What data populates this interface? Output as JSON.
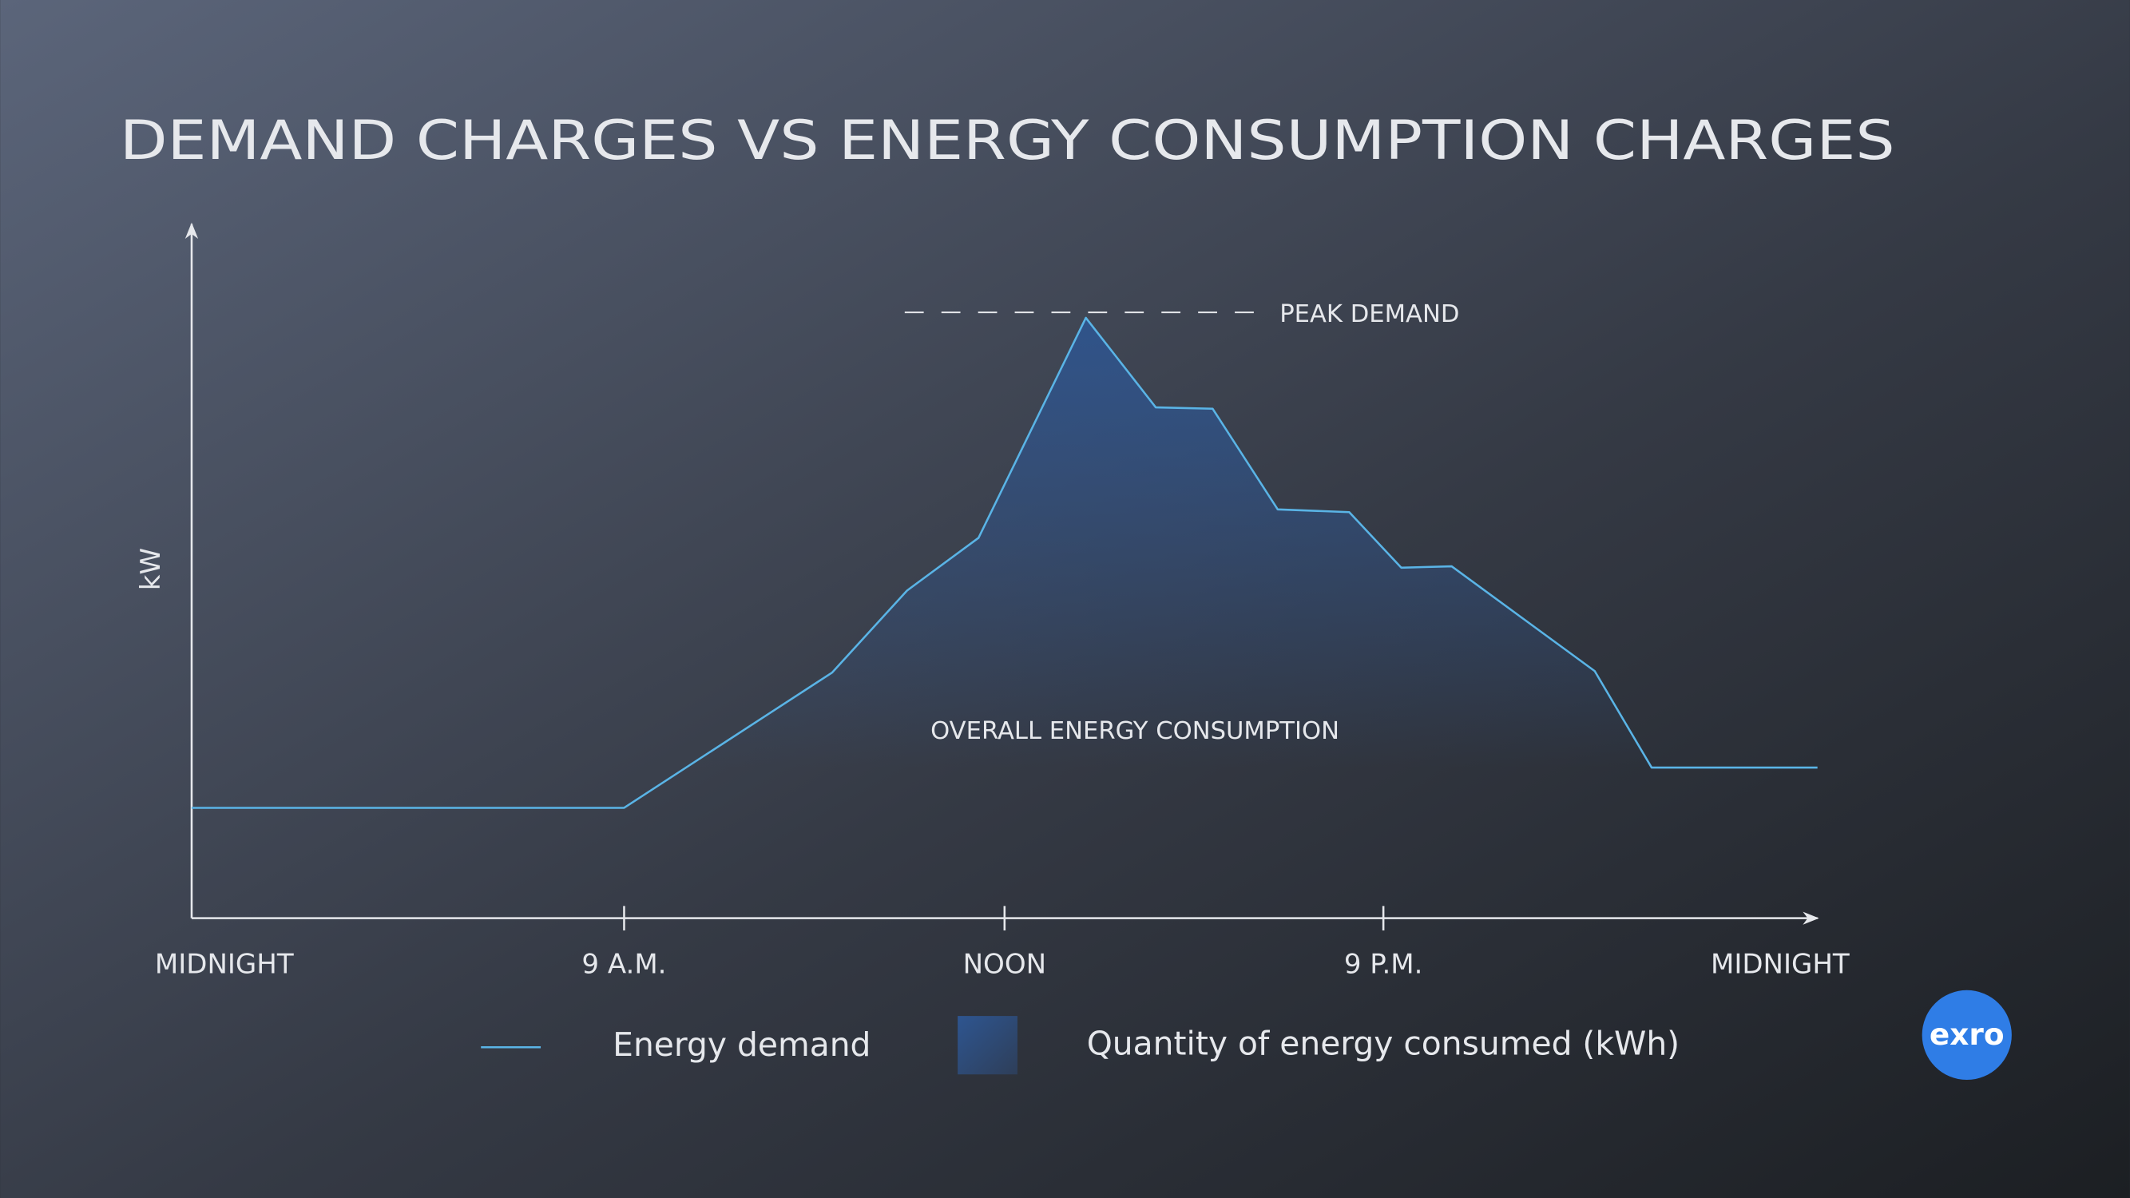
{
  "chart_data": {
    "type": "area",
    "title": "DEMAND CHARGES VS ENERGY CONSUMPTION CHARGES",
    "y_label": "kW",
    "x": [
      0,
      26.6,
      39.4,
      44.0,
      48.4,
      55.0,
      59.3,
      62.8,
      66.8,
      71.2,
      74.4,
      77.5,
      86.3,
      89.8,
      100
    ],
    "series": [
      {
        "name": "Energy demand",
        "color": "#5ab4e6",
        "values": [
          15.9,
          15.9,
          35.4,
          47.2,
          54.8,
          86.5,
          73.6,
          73.4,
          58.9,
          58.5,
          50.5,
          50.7,
          35.6,
          21.7,
          21.7
        ]
      }
    ],
    "area_label": "Quantity of energy consumed (kWh)",
    "area_color": "#2e5590",
    "xlim": [
      0,
      100
    ],
    "ylim": [
      0,
      100
    ],
    "xticks": [
      {
        "value": 0,
        "label": "MIDNIGHT"
      },
      {
        "value": 26.6,
        "label": "9 A.M."
      },
      {
        "value": 50,
        "label": "NOON"
      },
      {
        "value": 73.3,
        "label": "9 P.M."
      },
      {
        "value": 97.7,
        "label": "MIDNIGHT"
      }
    ],
    "annotations": [
      {
        "text": "PEAK DEMAND"
      },
      {
        "text": "OVERALL ENERGY CONSUMPTION"
      }
    ]
  },
  "logo": "exro"
}
